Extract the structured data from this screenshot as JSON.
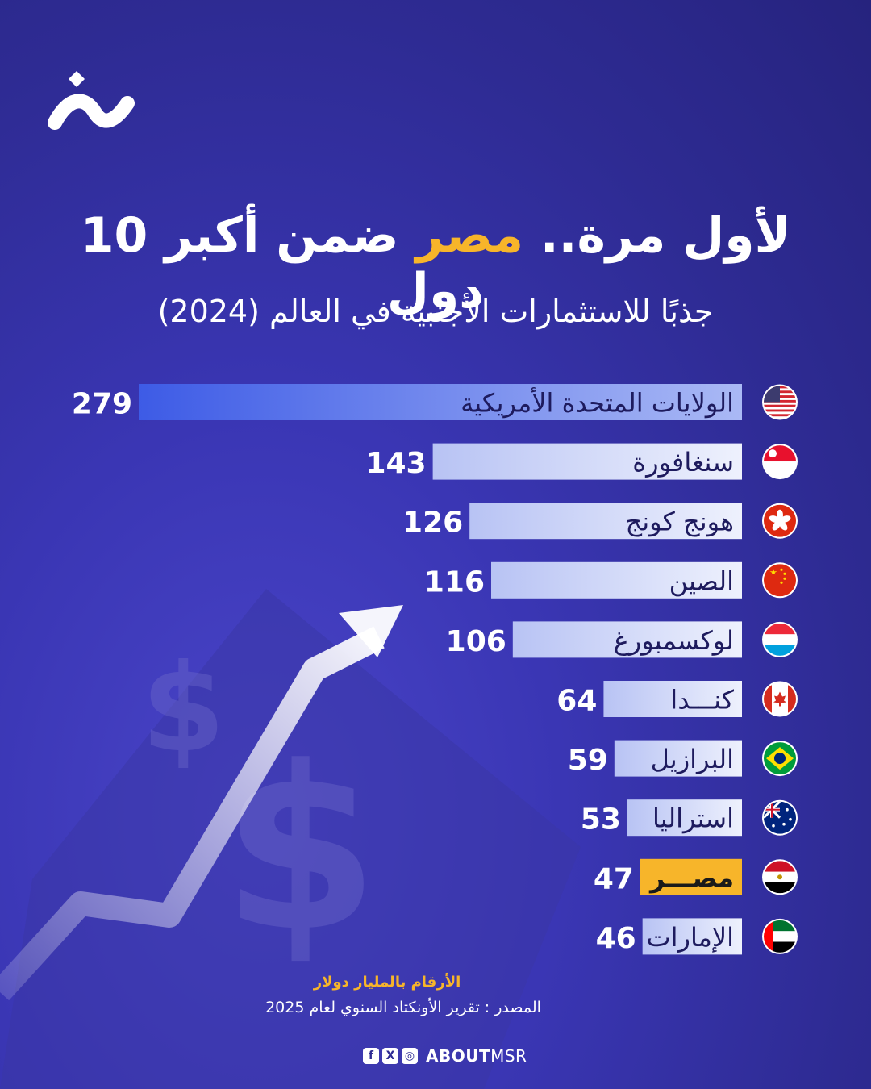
{
  "header": {
    "title_part1": "لأول مرة.. ",
    "title_highlight": "مصر",
    "title_part2": " ضمن أكبر 10 دول",
    "subtitle": "جذبًا للاستثمارات الأجنبية في العالم (2024)"
  },
  "colors": {
    "background": "#2e2b93",
    "bar_main": "#4b66e8",
    "bar_light": "#dfe4fb",
    "highlight": "#f7b52a",
    "text": "#ffffff"
  },
  "chart_data": {
    "type": "bar",
    "orientation": "horizontal",
    "title": "لأول مرة.. مصر ضمن أكبر 10 دول جذبًا للاستثمارات الأجنبية في العالم (2024)",
    "unit": "الأرقام بالمليار دولار",
    "categories": [
      "الولايات المتحدة الأمريكية",
      "سنغافورة",
      "هونج كونج",
      "الصين",
      "لوكسمبورغ",
      "كنـــدا",
      "البرازيل",
      "استراليا",
      "مصـــر",
      "الإمارات"
    ],
    "values": [
      279,
      143,
      126,
      116,
      106,
      64,
      59,
      53,
      47,
      46
    ],
    "flags": [
      "us-flag-icon",
      "singapore-flag-icon",
      "hong-kong-flag-icon",
      "china-flag-icon",
      "luxembourg-flag-icon",
      "canada-flag-icon",
      "brazil-flag-icon",
      "australia-flag-icon",
      "egypt-flag-icon",
      "uae-flag-icon"
    ],
    "highlighted": "مصـــر",
    "grid": false,
    "legend": "none"
  },
  "footer": {
    "unit_note": "الأرقام بالمليار دولار",
    "source": "المصدر : تقرير الأونكتاد السنوي لعام 2025",
    "social": [
      "f",
      "X",
      "◎"
    ],
    "brand_bold": "ABOUT",
    "brand_regular": "MSR"
  }
}
